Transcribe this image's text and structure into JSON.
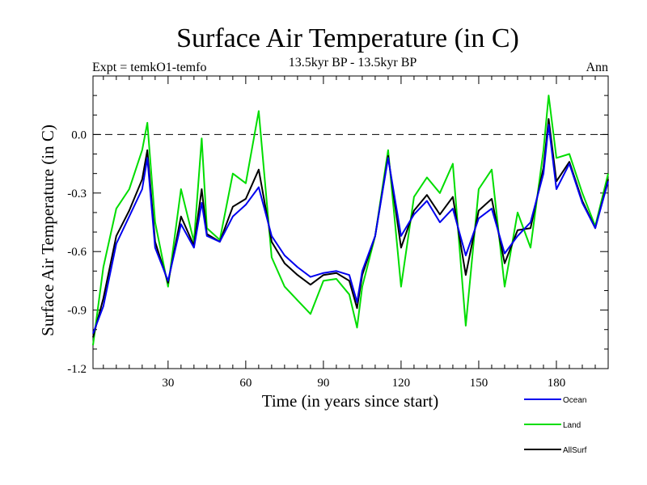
{
  "chart_data": {
    "type": "line",
    "title": "Surface Air Temperature (in C)",
    "subtitle": "13.5kyr BP - 13.5kyr BP",
    "experiment_label": "Expt = temkO1-temfo",
    "period_label": "Ann",
    "xlabel": "Time (in years since start)",
    "ylabel": "Surface Air Temperature (in C)",
    "xlim": [
      1,
      200
    ],
    "ylim": [
      -1.2,
      0.3
    ],
    "xticks": [
      30,
      60,
      90,
      120,
      150,
      180
    ],
    "xtick_labels": [
      "30",
      "60",
      "90",
      "120",
      "150",
      "180"
    ],
    "yticks": [
      -1.2,
      -0.9,
      -0.6,
      -0.3,
      0.0
    ],
    "ytick_labels": [
      "-1.2",
      "-0.9",
      "-0.6",
      "-0.3",
      "0.0"
    ],
    "reference_line": 0.0,
    "colors": {
      "Ocean": "#0000ee",
      "Land": "#00dd00",
      "AllSurf": "#000000",
      "axis": "#000000",
      "reference": "#000000"
    },
    "legend_placement": "bottom-right",
    "x": [
      1,
      5,
      10,
      15,
      20,
      22,
      25,
      30,
      35,
      40,
      43,
      45,
      50,
      55,
      60,
      65,
      70,
      75,
      80,
      85,
      90,
      95,
      100,
      103,
      105,
      110,
      115,
      120,
      125,
      130,
      135,
      140,
      145,
      150,
      155,
      160,
      165,
      170,
      175,
      177,
      180,
      185,
      190,
      195,
      200
    ],
    "series": [
      {
        "name": "Ocean",
        "values": [
          -1.02,
          -0.88,
          -0.56,
          -0.42,
          -0.28,
          -0.12,
          -0.58,
          -0.75,
          -0.46,
          -0.58,
          -0.35,
          -0.52,
          -0.55,
          -0.42,
          -0.36,
          -0.27,
          -0.52,
          -0.62,
          -0.68,
          -0.73,
          -0.71,
          -0.7,
          -0.72,
          -0.86,
          -0.7,
          -0.52,
          -0.12,
          -0.52,
          -0.41,
          -0.34,
          -0.45,
          -0.38,
          -0.62,
          -0.43,
          -0.38,
          -0.61,
          -0.52,
          -0.45,
          -0.2,
          0.05,
          -0.28,
          -0.15,
          -0.35,
          -0.48,
          -0.24
        ]
      },
      {
        "name": "Land",
        "values": [
          -1.08,
          -0.68,
          -0.38,
          -0.28,
          -0.08,
          0.06,
          -0.45,
          -0.78,
          -0.28,
          -0.55,
          -0.02,
          -0.48,
          -0.54,
          -0.2,
          -0.25,
          0.12,
          -0.63,
          -0.78,
          -0.85,
          -0.92,
          -0.75,
          -0.74,
          -0.82,
          -0.99,
          -0.78,
          -0.52,
          -0.08,
          -0.78,
          -0.32,
          -0.22,
          -0.3,
          -0.15,
          -0.98,
          -0.28,
          -0.18,
          -0.78,
          -0.4,
          -0.58,
          -0.08,
          0.2,
          -0.12,
          -0.1,
          -0.3,
          -0.47,
          -0.2
        ]
      },
      {
        "name": "AllSurf",
        "values": [
          -1.04,
          -0.84,
          -0.52,
          -0.39,
          -0.23,
          -0.08,
          -0.55,
          -0.76,
          -0.42,
          -0.57,
          -0.28,
          -0.51,
          -0.55,
          -0.37,
          -0.33,
          -0.18,
          -0.55,
          -0.66,
          -0.72,
          -0.77,
          -0.72,
          -0.71,
          -0.75,
          -0.89,
          -0.72,
          -0.52,
          -0.11,
          -0.58,
          -0.39,
          -0.31,
          -0.41,
          -0.32,
          -0.72,
          -0.39,
          -0.33,
          -0.66,
          -0.49,
          -0.48,
          -0.17,
          0.08,
          -0.24,
          -0.14,
          -0.34,
          -0.48,
          -0.23
        ]
      }
    ]
  }
}
